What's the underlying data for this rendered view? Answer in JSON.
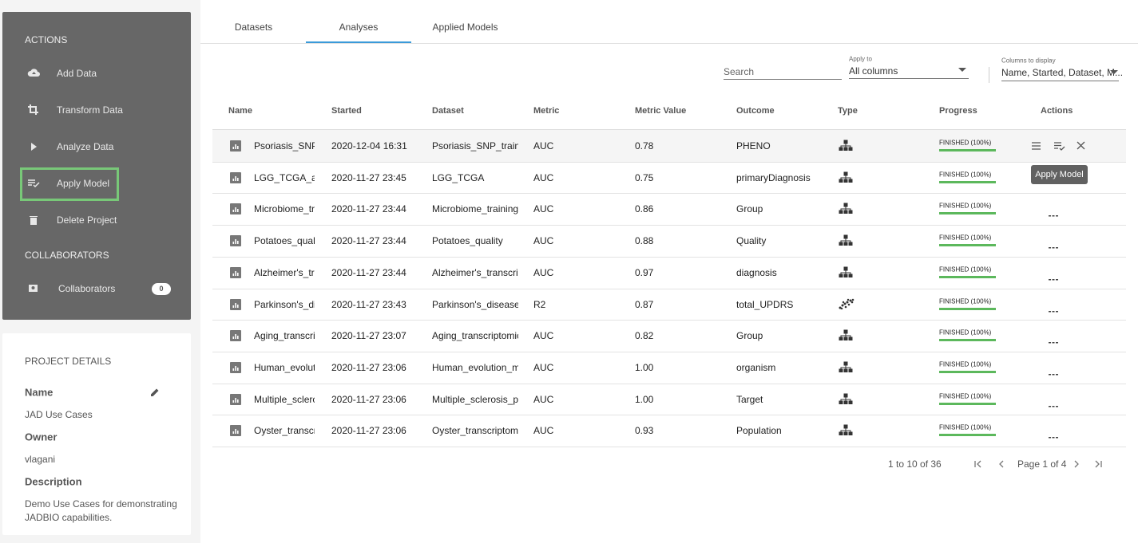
{
  "sidebar": {
    "actions_title": "ACTIONS",
    "actions": [
      "Add Data",
      "Transform Data",
      "Analyze Data",
      "Apply Model",
      "Delete Project"
    ],
    "collaborators_title": "COLLABORATORS",
    "collaborators": {
      "label": "Collaborators",
      "count": 0
    }
  },
  "project_details": {
    "title": "PROJECT DETAILS",
    "fields": [
      {
        "label": "Name",
        "value": "JAD Use Cases"
      },
      {
        "label": "Owner",
        "value": "vlagani"
      },
      {
        "label": "Description",
        "value": "Demo Use Cases for demonstrating JADBIO capabilities."
      }
    ]
  },
  "tabs": [
    "Datasets",
    "Analyses",
    "Applied Models"
  ],
  "active_tab": 1,
  "filters": {
    "search_placeholder": "Search",
    "apply_to_label": "Apply to",
    "apply_to_value": "All columns",
    "columns_label": "Columns to display",
    "columns_value": "Name, Started, Dataset, M..."
  },
  "table": {
    "headers": [
      "Name",
      "Started",
      "Dataset",
      "Metric",
      "Metric Value",
      "Outcome",
      "Type",
      "Progress",
      "Actions"
    ],
    "rows": [
      [
        "Psoriasis_SNP_train",
        "2020-12-04 16:31",
        "Psoriasis_SNP_train",
        "AUC",
        "0.78",
        "PHENO",
        "FINISHED (100%)"
      ],
      [
        "LGG_TCGA_analysis",
        "2020-11-27 23:45",
        "LGG_TCGA",
        "AUC",
        "0.75",
        "primaryDiagnosis",
        "FINISHED (100%)"
      ],
      [
        "Microbiome_training",
        "2020-11-27 23:44",
        "Microbiome_training",
        "AUC",
        "0.86",
        "Group",
        "FINISHED (100%)"
      ],
      [
        "Potatoes_quality",
        "2020-11-27 23:44",
        "Potatoes_quality",
        "AUC",
        "0.88",
        "Quality",
        "FINISHED (100%)"
      ],
      [
        "Alzheimer's_transcriptomics",
        "2020-11-27 23:44",
        "Alzheimer's_transcriptomics",
        "AUC",
        "0.97",
        "diagnosis",
        "FINISHED (100%)"
      ],
      [
        "Parkinson's_disease",
        "2020-11-27 23:43",
        "Parkinson's_disease",
        "R2",
        "0.87",
        "total_UPDRS",
        "FINISHED (100%)"
      ],
      [
        "Aging_transcriptomics",
        "2020-11-27 23:07",
        "Aging_transcriptomics",
        "AUC",
        "0.82",
        "Group",
        "FINISHED (100%)"
      ],
      [
        "Human_evolution_met",
        "2020-11-27 23:06",
        "Human_evolution_met",
        "AUC",
        "1.00",
        "organism",
        "FINISHED (100%)"
      ],
      [
        "Multiple_sclerosis_pro",
        "2020-11-27 23:06",
        "Multiple_sclerosis_pro",
        "AUC",
        "1.00",
        "Target",
        "FINISHED (100%)"
      ],
      [
        "Oyster_transcriptomics",
        "2020-11-27 23:06",
        "Oyster_transcriptomics",
        "AUC",
        "0.93",
        "Population",
        "FINISHED (100%)"
      ]
    ]
  },
  "tooltip": "Apply Model",
  "pagination": {
    "range": "1 to 10 of 36",
    "page": "Page 1 of 4"
  }
}
